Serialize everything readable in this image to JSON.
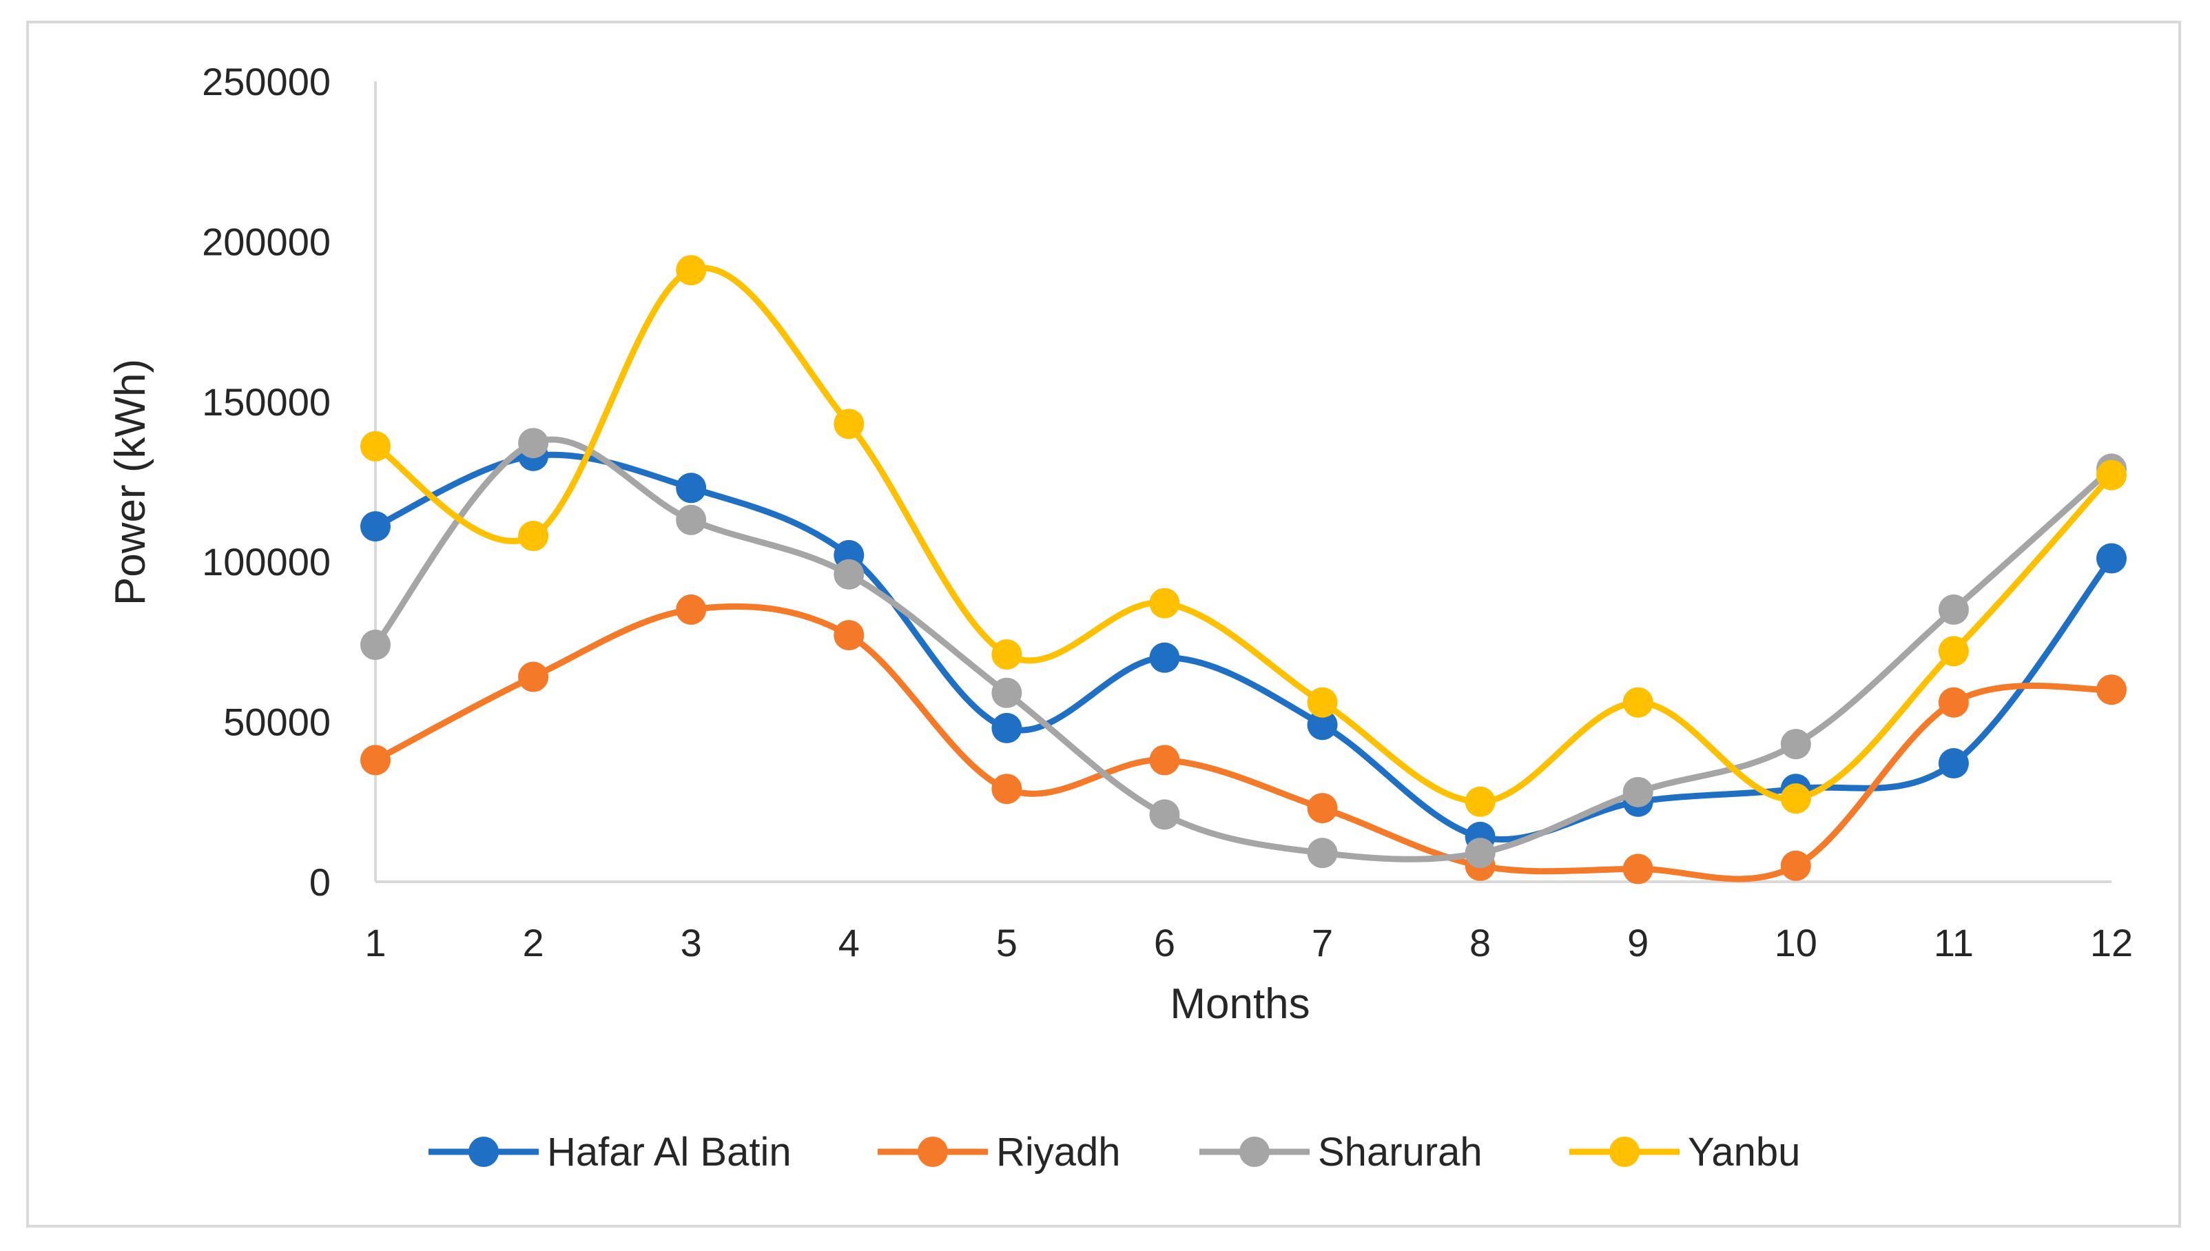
{
  "chart_data": {
    "type": "line",
    "title": "",
    "xlabel": "Months",
    "ylabel": "Power (kWh)",
    "ylim": [
      0,
      250000
    ],
    "yticks": [
      0,
      50000,
      100000,
      150000,
      200000,
      250000
    ],
    "categories": [
      "1",
      "2",
      "3",
      "4",
      "5",
      "6",
      "7",
      "8",
      "9",
      "10",
      "11",
      "12"
    ],
    "grid": false,
    "legend_position": "bottom",
    "series": [
      {
        "name": "Hafar Al Batin",
        "color": "#1f6fc5",
        "values": [
          111000,
          133000,
          123000,
          102000,
          48000,
          70000,
          49000,
          14000,
          25000,
          29000,
          37000,
          101000
        ]
      },
      {
        "name": "Riyadh",
        "color": "#f47a2a",
        "values": [
          38000,
          64000,
          85000,
          77000,
          29000,
          38000,
          23000,
          5000,
          4000,
          5000,
          56000,
          60000
        ]
      },
      {
        "name": "Sharurah",
        "color": "#a5a5a5",
        "values": [
          74000,
          137000,
          113000,
          96000,
          59000,
          21000,
          9000,
          9000,
          28000,
          43000,
          85000,
          129000
        ]
      },
      {
        "name": "Yanbu",
        "color": "#ffc000",
        "values": [
          136000,
          108000,
          191000,
          143000,
          71000,
          87000,
          56000,
          25000,
          56000,
          26000,
          72000,
          127000
        ]
      }
    ]
  }
}
